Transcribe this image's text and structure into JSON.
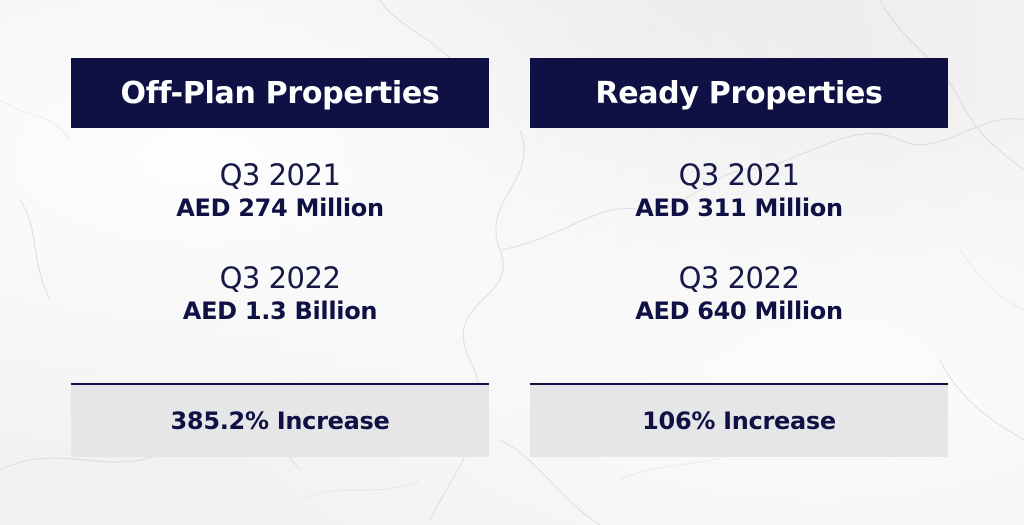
{
  "panels": [
    {
      "header": "Off-Plan Properties",
      "periods": [
        {
          "quarter": "Q3 2021",
          "amount": "AED 274 Million"
        },
        {
          "quarter": "Q3 2022",
          "amount": "AED 1.3 Billion"
        }
      ],
      "result": "385.2% Increase"
    },
    {
      "header": "Ready Properties",
      "periods": [
        {
          "quarter": "Q3 2021",
          "amount": "AED 311 Million"
        },
        {
          "quarter": "Q3 2022",
          "amount": "AED 640 Million"
        }
      ],
      "result": "106% Increase"
    }
  ],
  "colors": {
    "navy": "#0f1145",
    "result_bg": "#e6e6e8",
    "background": "#f2f2f3"
  }
}
